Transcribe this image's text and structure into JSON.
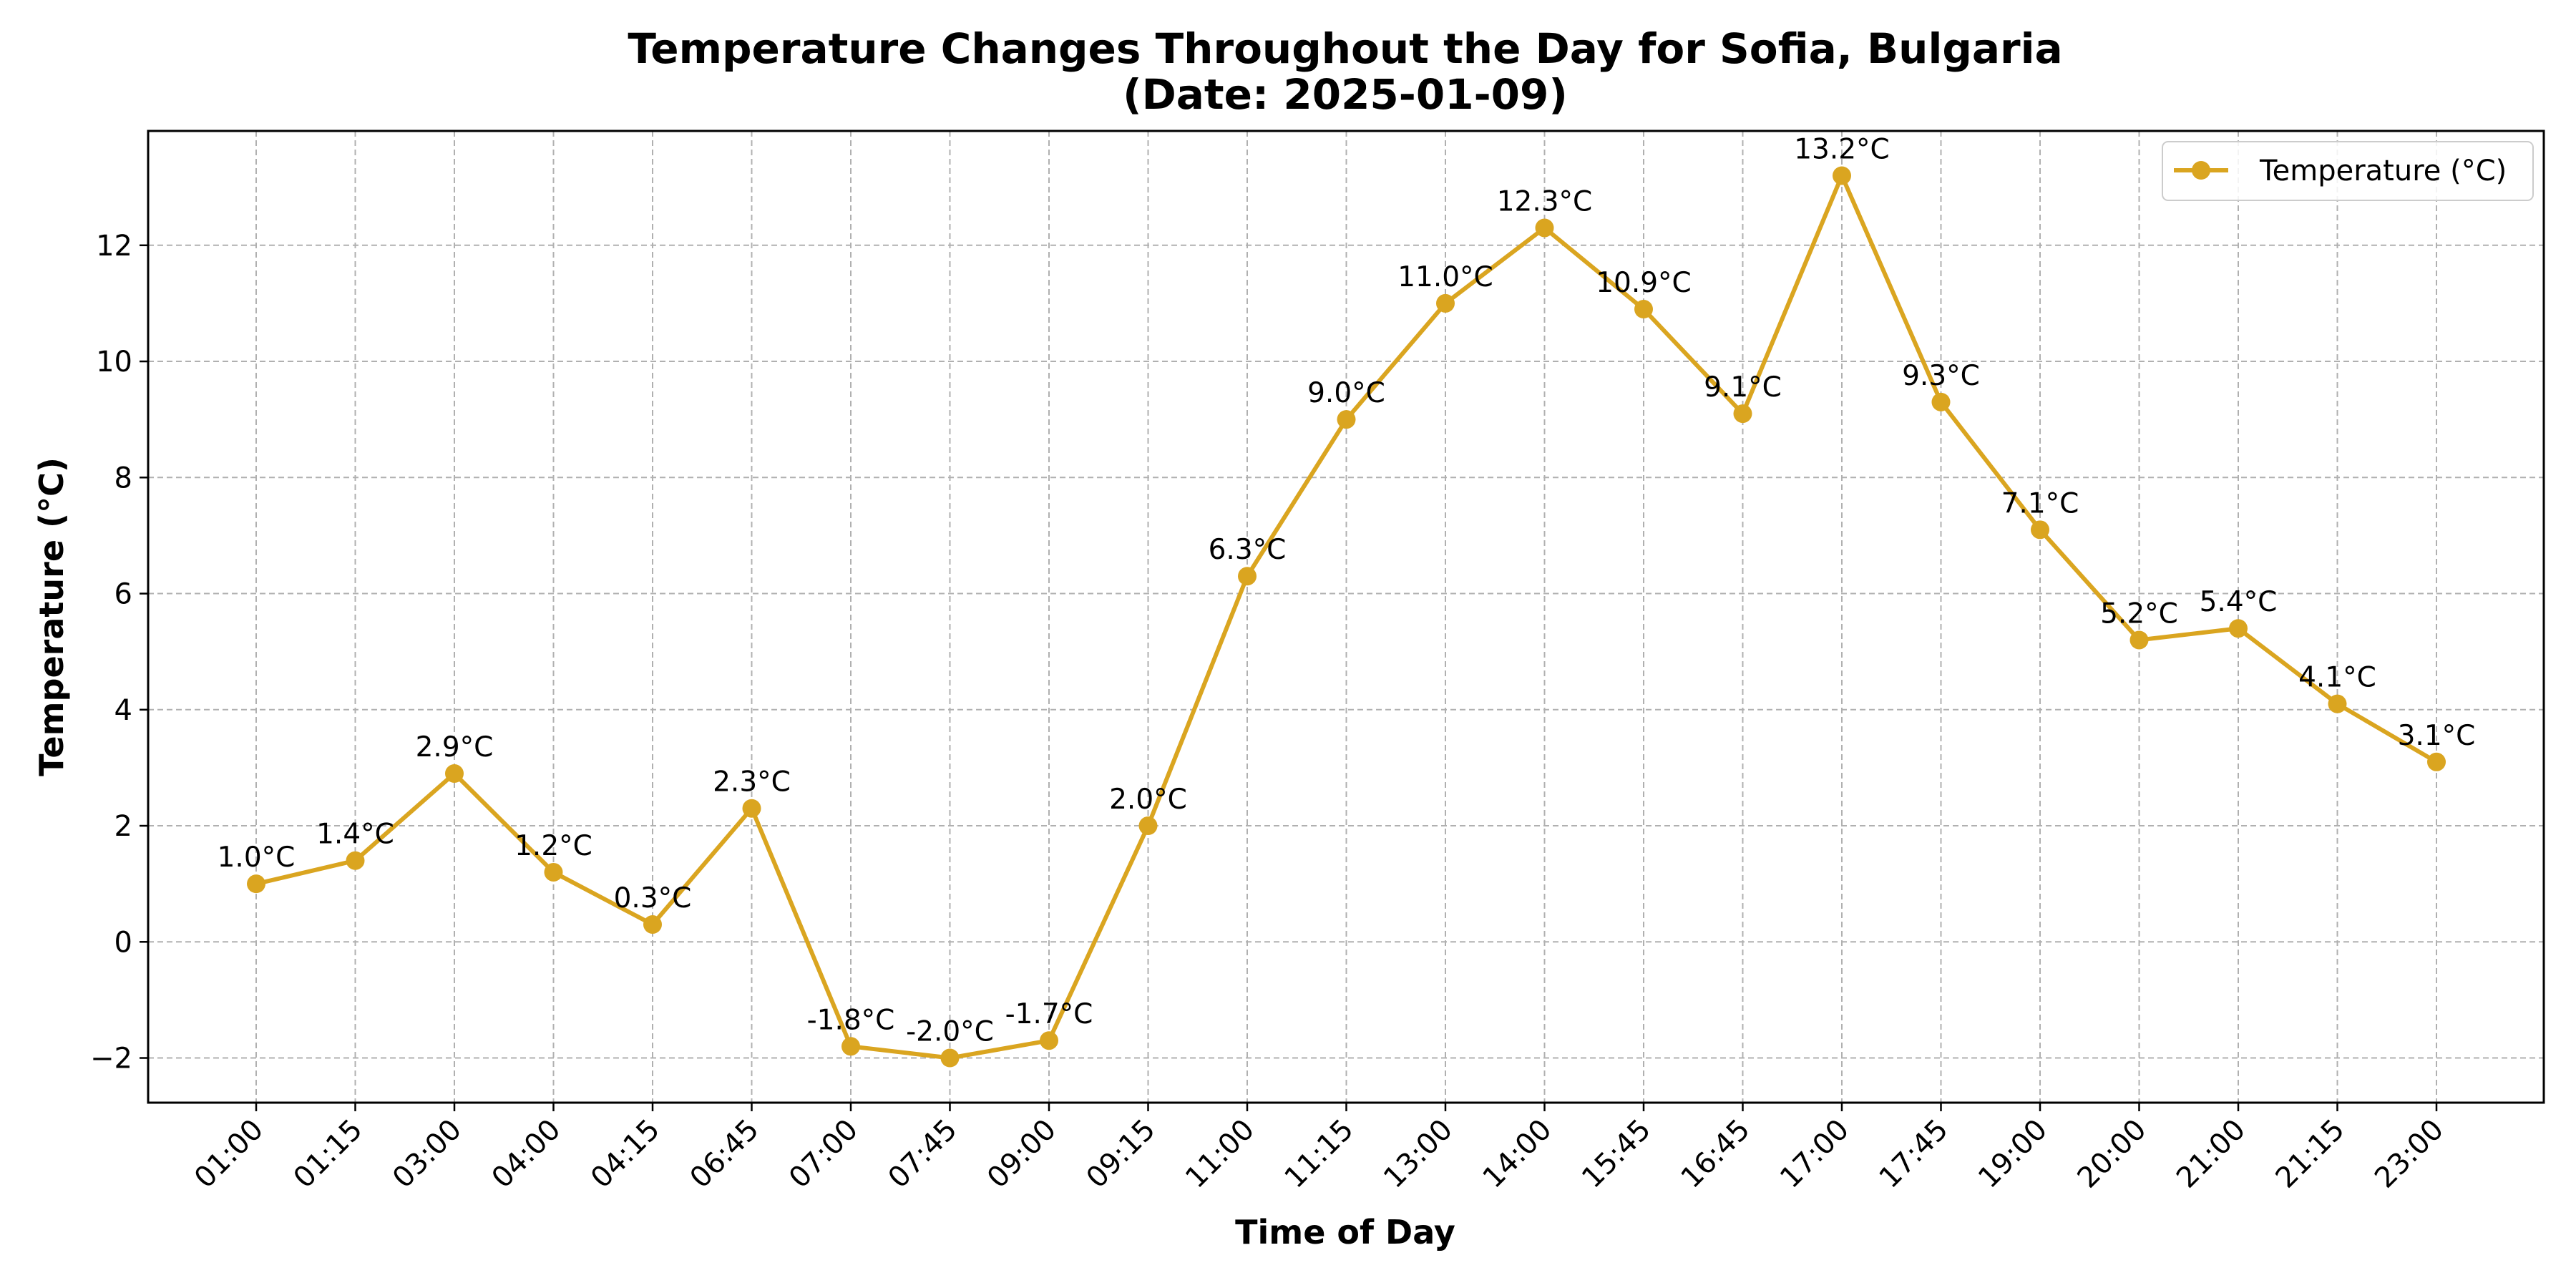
{
  "chart_data": {
    "type": "line",
    "title": "Temperature Changes Throughout the Day for Sofia, Bulgaria",
    "subtitle": "(Date: 2025-01-09)",
    "xlabel": "Time of Day",
    "ylabel": "Temperature (°C)",
    "categories": [
      "01:00",
      "01:15",
      "03:00",
      "04:00",
      "04:15",
      "06:45",
      "07:00",
      "07:45",
      "09:00",
      "09:15",
      "11:00",
      "11:15",
      "13:00",
      "14:00",
      "15:45",
      "16:45",
      "17:00",
      "17:45",
      "19:00",
      "20:00",
      "21:00",
      "21:15",
      "23:00"
    ],
    "series": [
      {
        "name": "Temperature (°C)",
        "color": "#DAA520",
        "values": [
          1.0,
          1.4,
          2.9,
          1.2,
          0.3,
          2.3,
          -1.8,
          -2.0,
          -1.7,
          2.0,
          6.3,
          9.0,
          11.0,
          12.3,
          10.9,
          9.1,
          13.2,
          9.3,
          7.1,
          5.2,
          5.4,
          4.1,
          3.1
        ],
        "labels": [
          "1.0°C",
          "1.4°C",
          "2.9°C",
          "1.2°C",
          "0.3°C",
          "2.3°C",
          "-1.8°C",
          "-2.0°C",
          "-1.7°C",
          "2.0°C",
          "6.3°C",
          "9.0°C",
          "11.0°C",
          "12.3°C",
          "10.9°C",
          "9.1°C",
          "13.2°C",
          "9.3°C",
          "7.1°C",
          "5.2°C",
          "5.4°C",
          "4.1°C",
          "3.1°C"
        ]
      }
    ],
    "yticks": [
      -2,
      0,
      2,
      4,
      6,
      8,
      10,
      12
    ],
    "ylim": [
      -2.77,
      13.97
    ],
    "grid": true,
    "legend": "top-right"
  }
}
